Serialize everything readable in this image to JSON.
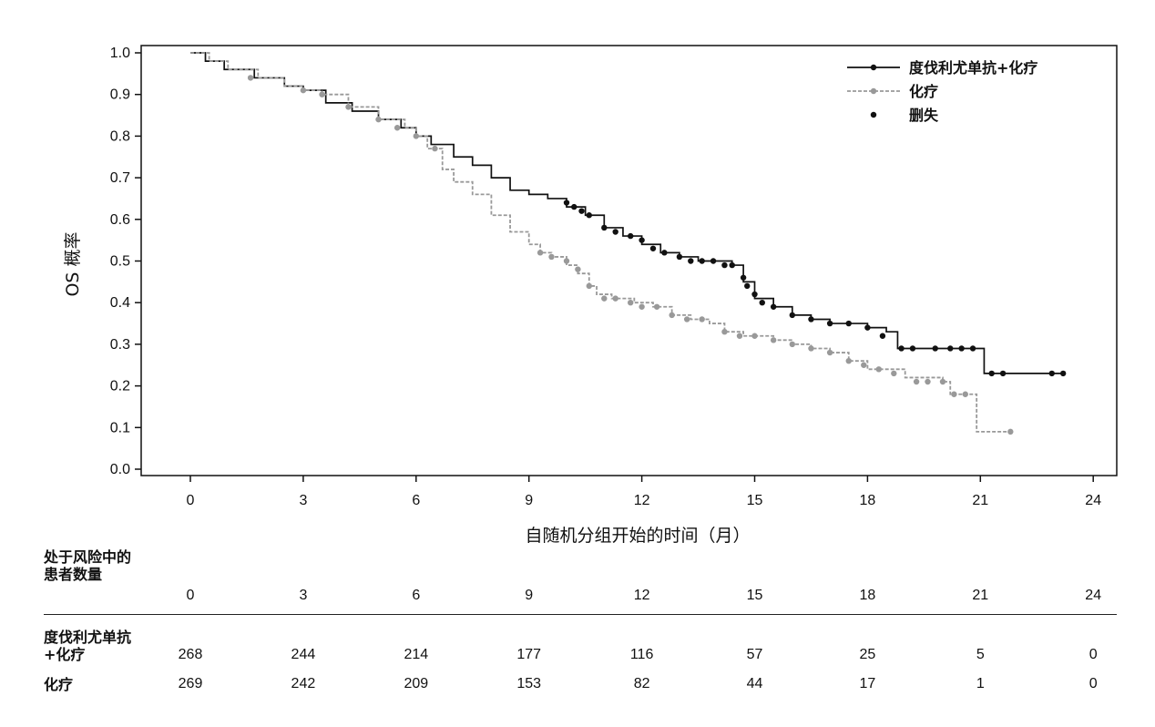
{
  "chart_data": {
    "type": "line",
    "title": "",
    "xlabel": "自随机分组开始的时间（月）",
    "ylabel": "OS 概率",
    "xlim": [
      0,
      24
    ],
    "ylim": [
      0,
      1.0
    ],
    "x_ticks": [
      0,
      3,
      6,
      9,
      12,
      15,
      18,
      21,
      24
    ],
    "y_ticks": [
      "0.0",
      "0.1",
      "0.2",
      "0.3",
      "0.4",
      "0.5",
      "0.6",
      "0.7",
      "0.8",
      "0.9",
      "1.0"
    ],
    "grid": false,
    "legend_position": "top-right",
    "legend": [
      {
        "label": "度伐利尤单抗+化疗",
        "style": "solid",
        "color": "#111111"
      },
      {
        "label": "化疗",
        "style": "dashed",
        "color": "#999999"
      },
      {
        "label": "删失",
        "style": "marker",
        "color": "#111111"
      }
    ],
    "series": [
      {
        "name": "度伐利尤单抗+化疗",
        "color": "#111111",
        "style": "solid",
        "x": [
          0,
          0.4,
          0.9,
          1.7,
          2.5,
          3.0,
          3.6,
          4.3,
          5.0,
          5.6,
          6.0,
          6.4,
          7.0,
          7.5,
          8.0,
          8.5,
          9.0,
          9.5,
          10.0,
          10.5,
          11.0,
          11.5,
          12.0,
          12.5,
          13.0,
          13.5,
          14.0,
          14.4,
          14.7,
          15.0,
          15.5,
          16.0,
          16.5,
          17.0,
          17.5,
          18.0,
          18.5,
          18.8,
          19.5,
          20.5,
          21.0,
          21.1,
          23.2
        ],
        "y": [
          1.0,
          0.98,
          0.96,
          0.94,
          0.92,
          0.91,
          0.88,
          0.86,
          0.84,
          0.82,
          0.8,
          0.78,
          0.75,
          0.73,
          0.7,
          0.67,
          0.66,
          0.65,
          0.63,
          0.61,
          0.58,
          0.56,
          0.54,
          0.52,
          0.51,
          0.5,
          0.5,
          0.49,
          0.45,
          0.41,
          0.39,
          0.37,
          0.36,
          0.35,
          0.35,
          0.34,
          0.33,
          0.29,
          0.29,
          0.29,
          0.29,
          0.23,
          0.23
        ]
      },
      {
        "name": "化疗",
        "color": "#999999",
        "style": "dashed",
        "x": [
          0,
          0.5,
          1.0,
          1.8,
          2.5,
          3.0,
          3.5,
          4.2,
          5.0,
          5.7,
          6.0,
          6.3,
          6.7,
          7.0,
          7.5,
          8.0,
          8.5,
          9.0,
          9.3,
          9.6,
          10.0,
          10.3,
          10.6,
          10.8,
          11.2,
          11.8,
          12.3,
          12.8,
          13.3,
          13.8,
          14.2,
          14.7,
          15.0,
          15.5,
          16.0,
          16.5,
          17.0,
          17.5,
          18.0,
          18.3,
          19.0,
          20.0,
          20.2,
          20.8,
          20.9,
          21.8
        ],
        "y": [
          1.0,
          0.98,
          0.96,
          0.94,
          0.92,
          0.91,
          0.9,
          0.87,
          0.84,
          0.82,
          0.8,
          0.77,
          0.72,
          0.69,
          0.66,
          0.61,
          0.57,
          0.54,
          0.52,
          0.51,
          0.49,
          0.47,
          0.44,
          0.42,
          0.41,
          0.4,
          0.39,
          0.37,
          0.36,
          0.35,
          0.33,
          0.32,
          0.32,
          0.31,
          0.3,
          0.29,
          0.28,
          0.26,
          0.24,
          0.24,
          0.22,
          0.21,
          0.18,
          0.18,
          0.09,
          0.09
        ]
      }
    ],
    "censored": [
      {
        "series": "度伐利尤单抗+化疗",
        "points": [
          [
            10.0,
            0.64
          ],
          [
            10.2,
            0.63
          ],
          [
            10.4,
            0.62
          ],
          [
            10.6,
            0.61
          ],
          [
            11.0,
            0.58
          ],
          [
            11.3,
            0.57
          ],
          [
            11.7,
            0.56
          ],
          [
            12.0,
            0.55
          ],
          [
            12.3,
            0.53
          ],
          [
            12.6,
            0.52
          ],
          [
            13.0,
            0.51
          ],
          [
            13.3,
            0.5
          ],
          [
            13.6,
            0.5
          ],
          [
            13.9,
            0.5
          ],
          [
            14.2,
            0.49
          ],
          [
            14.4,
            0.49
          ],
          [
            14.7,
            0.46
          ],
          [
            14.8,
            0.44
          ],
          [
            15.0,
            0.42
          ],
          [
            15.2,
            0.4
          ],
          [
            15.5,
            0.39
          ],
          [
            16.0,
            0.37
          ],
          [
            16.5,
            0.36
          ],
          [
            17.0,
            0.35
          ],
          [
            17.5,
            0.35
          ],
          [
            18.0,
            0.34
          ],
          [
            18.4,
            0.32
          ],
          [
            18.9,
            0.29
          ],
          [
            19.2,
            0.29
          ],
          [
            19.8,
            0.29
          ],
          [
            20.2,
            0.29
          ],
          [
            20.5,
            0.29
          ],
          [
            20.8,
            0.29
          ],
          [
            21.3,
            0.23
          ],
          [
            21.6,
            0.23
          ],
          [
            22.9,
            0.23
          ],
          [
            23.2,
            0.23
          ]
        ]
      },
      {
        "series": "化疗",
        "points": [
          [
            1.6,
            0.94
          ],
          [
            3.0,
            0.91
          ],
          [
            3.5,
            0.9
          ],
          [
            4.2,
            0.87
          ],
          [
            5.0,
            0.84
          ],
          [
            5.5,
            0.82
          ],
          [
            6.0,
            0.8
          ],
          [
            6.5,
            0.77
          ],
          [
            9.3,
            0.52
          ],
          [
            9.6,
            0.51
          ],
          [
            10.0,
            0.5
          ],
          [
            10.3,
            0.48
          ],
          [
            10.6,
            0.44
          ],
          [
            11.0,
            0.41
          ],
          [
            11.3,
            0.41
          ],
          [
            11.7,
            0.4
          ],
          [
            12.0,
            0.39
          ],
          [
            12.4,
            0.39
          ],
          [
            12.8,
            0.37
          ],
          [
            13.2,
            0.36
          ],
          [
            13.6,
            0.36
          ],
          [
            14.2,
            0.33
          ],
          [
            14.6,
            0.32
          ],
          [
            15.0,
            0.32
          ],
          [
            15.5,
            0.31
          ],
          [
            16.0,
            0.3
          ],
          [
            16.5,
            0.29
          ],
          [
            17.0,
            0.28
          ],
          [
            17.5,
            0.26
          ],
          [
            17.9,
            0.25
          ],
          [
            18.3,
            0.24
          ],
          [
            18.7,
            0.23
          ],
          [
            19.3,
            0.21
          ],
          [
            19.6,
            0.21
          ],
          [
            20.0,
            0.21
          ],
          [
            20.3,
            0.18
          ],
          [
            20.6,
            0.18
          ],
          [
            21.8,
            0.09
          ]
        ]
      }
    ]
  },
  "risk_table": {
    "header": [
      "处于风险中的",
      "患者数量"
    ],
    "times": [
      "0",
      "3",
      "6",
      "9",
      "12",
      "15",
      "18",
      "21",
      "24"
    ],
    "rows": [
      {
        "label": [
          "度伐利尤单抗",
          "+化疗"
        ],
        "values": [
          "268",
          "244",
          "214",
          "177",
          "116",
          "57",
          "25",
          "5",
          "0"
        ]
      },
      {
        "label": [
          "化疗"
        ],
        "values": [
          "269",
          "242",
          "209",
          "153",
          "82",
          "44",
          "17",
          "1",
          "0"
        ]
      }
    ]
  }
}
